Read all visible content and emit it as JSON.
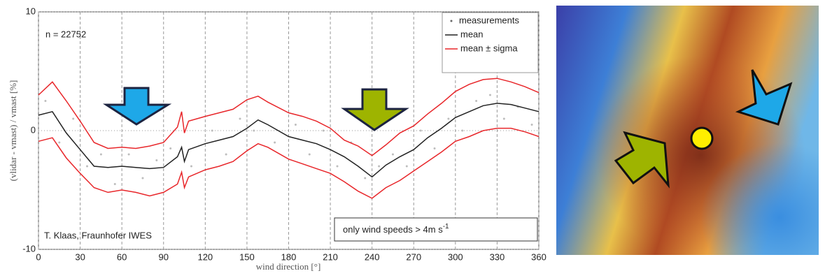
{
  "chart_data": {
    "type": "line",
    "annotation_count": "n =  22752",
    "annotation_author": "T. Klaas, Fraunhofer IWES",
    "annotation_note": "only wind speeds > 4m s",
    "annotation_note_sup": "-1",
    "x_label": "wind direction [°]",
    "y_label": "(vlidar - vmast) / vmast [%]",
    "xlim": [
      0,
      360
    ],
    "xticks": [
      0,
      30,
      60,
      90,
      120,
      150,
      180,
      210,
      240,
      270,
      300,
      330,
      360
    ],
    "ylim": [
      -10,
      10
    ],
    "yticks": [
      -10,
      0,
      10
    ],
    "grid": true,
    "legend": "upper right",
    "scatter": {
      "name": "measurements",
      "color": "#bdbdbd",
      "x": [
        5,
        15,
        25,
        35,
        45,
        55,
        65,
        75,
        85,
        95,
        110,
        125,
        135,
        145,
        155,
        170,
        185,
        195,
        205,
        215,
        225,
        235,
        245,
        255,
        265,
        275,
        285,
        295,
        305,
        315,
        325,
        335,
        345,
        355
      ],
      "y": [
        2.5,
        -1,
        1,
        -3,
        -2,
        -4.5,
        -2,
        -4,
        -2.5,
        -1.5,
        -3,
        0,
        -2,
        1,
        0,
        -1,
        0.5,
        -2,
        0,
        -3,
        -1,
        -4,
        -3,
        -2,
        -3,
        0,
        -1.5,
        1,
        0,
        2.5,
        3,
        1,
        2,
        0.5
      ]
    },
    "x": [
      0,
      10,
      20,
      30,
      40,
      50,
      60,
      70,
      80,
      90,
      100,
      103,
      105,
      108,
      120,
      130,
      140,
      150,
      158,
      165,
      180,
      190,
      200,
      210,
      220,
      230,
      240,
      250,
      260,
      270,
      280,
      290,
      300,
      310,
      320,
      330,
      340,
      350,
      360
    ],
    "series": [
      {
        "name": "mean",
        "color": "#222222",
        "values": [
          1.3,
          1.6,
          -0.2,
          -1.6,
          -3,
          -3.1,
          -3,
          -3.1,
          -3.2,
          -3.1,
          -2.2,
          -1.4,
          -2.6,
          -1.6,
          -1.1,
          -0.8,
          -0.5,
          0.2,
          0.9,
          0.5,
          -0.5,
          -0.8,
          -1.1,
          -1.6,
          -2.2,
          -3,
          -3.9,
          -2.9,
          -2.2,
          -1.6,
          -0.6,
          0.2,
          1.1,
          1.6,
          2.1,
          2.3,
          2.2,
          1.9,
          1.6
        ]
      },
      {
        "name": "mean ± sigma",
        "color": "#e8262a",
        "values": [
          3,
          4.1,
          2.5,
          0.8,
          -1.0,
          -1.5,
          -1.4,
          -1.5,
          -1.3,
          -1.0,
          0.3,
          1.6,
          -0.2,
          0.8,
          1.2,
          1.5,
          1.8,
          2.6,
          2.9,
          2.4,
          1.5,
          1.2,
          0.8,
          0.2,
          -0.8,
          -1.3,
          -2.1,
          -1.2,
          -0.2,
          0.4,
          1.4,
          2.3,
          3.3,
          3.9,
          4.3,
          4.4,
          4.1,
          3.7,
          3.2
        ]
      },
      {
        "color": "#e8262a",
        "values": [
          -0.9,
          -0.6,
          -2.3,
          -3.6,
          -4.8,
          -5.2,
          -5.0,
          -5.2,
          -5.5,
          -5.2,
          -4.5,
          -3.5,
          -4.8,
          -3.9,
          -3.3,
          -3.0,
          -2.6,
          -1.7,
          -1.1,
          -1.4,
          -2.4,
          -2.8,
          -3.2,
          -3.6,
          -4.3,
          -5.1,
          -5.7,
          -4.8,
          -4.2,
          -3.4,
          -2.6,
          -1.8,
          -0.9,
          -0.5,
          0.0,
          0.2,
          0.2,
          -0.1,
          -0.5
        ]
      }
    ]
  }
}
